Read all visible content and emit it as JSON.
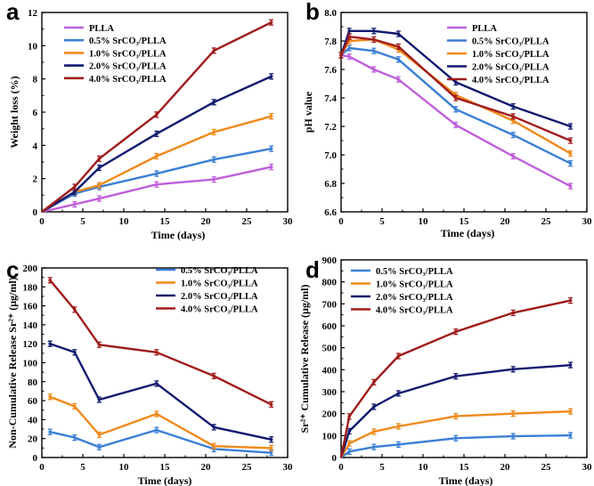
{
  "colors": {
    "plla": "#c05fdc",
    "s05": "#3b7fd6",
    "s10": "#f0891a",
    "s20": "#111a6e",
    "s40": "#a01c1c"
  },
  "chart_data": [
    {
      "panel": "a",
      "type": "line",
      "xlabel": "Time (days)",
      "ylabel": "Weight loss (%)",
      "xlim": [
        0,
        30
      ],
      "ylim": [
        0,
        12
      ],
      "xticks": [
        0,
        5,
        10,
        15,
        20,
        25,
        30
      ],
      "yticks": [
        0,
        2,
        4,
        6,
        8,
        10,
        12
      ],
      "legend_position": "top-left",
      "series": [
        {
          "name": "PLLA",
          "color_key": "plla",
          "x": [
            0,
            4,
            7,
            14,
            21,
            28
          ],
          "values": [
            0,
            0.45,
            0.8,
            1.65,
            1.95,
            2.7
          ]
        },
        {
          "name": "0.5% SrCO₃/PLLA",
          "color_key": "s05",
          "x": [
            0,
            4,
            7,
            14,
            21,
            28
          ],
          "values": [
            0,
            1.1,
            1.5,
            2.3,
            3.15,
            3.8
          ]
        },
        {
          "name": "1.0% SrCO₃/PLLA",
          "color_key": "s10",
          "x": [
            0,
            4,
            7,
            14,
            21,
            28
          ],
          "values": [
            0,
            1.2,
            1.6,
            3.35,
            4.8,
            5.75
          ]
        },
        {
          "name": "2.0% SrCO₃/PLLA",
          "color_key": "s20",
          "x": [
            0,
            4,
            7,
            14,
            21,
            28
          ],
          "values": [
            0,
            1.2,
            2.65,
            4.7,
            6.6,
            8.15
          ]
        },
        {
          "name": "4.0% SrCO₃/PLLA",
          "color_key": "s40",
          "x": [
            0,
            4,
            7,
            14,
            21,
            28
          ],
          "values": [
            0,
            1.5,
            3.2,
            5.85,
            9.7,
            11.4
          ]
        }
      ]
    },
    {
      "panel": "b",
      "type": "line",
      "xlabel": "Time (days)",
      "ylabel": "pH value",
      "xlim": [
        0,
        30
      ],
      "ylim": [
        6.6,
        8.0
      ],
      "xticks": [
        0,
        5,
        10,
        15,
        20,
        25,
        30
      ],
      "yticks": [
        6.6,
        6.8,
        7.0,
        7.2,
        7.4,
        7.6,
        7.8,
        8.0
      ],
      "legend_position": "top-right",
      "series": [
        {
          "name": "PLLA",
          "color_key": "plla",
          "x": [
            0,
            1,
            4,
            7,
            14,
            21,
            28
          ],
          "values": [
            7.7,
            7.69,
            7.6,
            7.53,
            7.21,
            6.99,
            6.78
          ]
        },
        {
          "name": "0.5% SrCO₃/PLLA",
          "color_key": "s05",
          "x": [
            0,
            1,
            4,
            7,
            14,
            21,
            28
          ],
          "values": [
            7.7,
            7.75,
            7.73,
            7.67,
            7.32,
            7.14,
            6.94
          ]
        },
        {
          "name": "1.0% SrCO₃/PLLA",
          "color_key": "s10",
          "x": [
            0,
            1,
            4,
            7,
            14,
            21,
            28
          ],
          "values": [
            7.7,
            7.8,
            7.81,
            7.74,
            7.42,
            7.24,
            7.01
          ]
        },
        {
          "name": "2.0% SrCO₃/PLLA",
          "color_key": "s20",
          "x": [
            0,
            1,
            4,
            7,
            14,
            21,
            28
          ],
          "values": [
            7.7,
            7.87,
            7.87,
            7.85,
            7.51,
            7.34,
            7.2
          ]
        },
        {
          "name": "4.0% SrCO₃/PLLA",
          "color_key": "s40",
          "x": [
            0,
            1,
            4,
            7,
            14,
            21,
            28
          ],
          "values": [
            7.7,
            7.83,
            7.81,
            7.76,
            7.4,
            7.27,
            7.1
          ]
        }
      ]
    },
    {
      "panel": "c",
      "type": "line",
      "xlabel": "Time (days)",
      "ylabel": "Non-Cumulative Release Sr²⁺ (μg/ml)",
      "xlim": [
        0,
        30
      ],
      "ylim": [
        0,
        200
      ],
      "xticks": [
        0,
        5,
        10,
        15,
        20,
        25,
        30
      ],
      "yticks": [
        0,
        20,
        40,
        60,
        80,
        100,
        120,
        140,
        160,
        180,
        200
      ],
      "legend_position": "top-right",
      "series": [
        {
          "name": "0.5% SrCO₃/PLLA",
          "color_key": "s05",
          "x": [
            1,
            4,
            7,
            14,
            21,
            28
          ],
          "values": [
            27,
            21,
            11,
            29,
            9,
            5
          ]
        },
        {
          "name": "1.0% SrCO₃/PLLA",
          "color_key": "s10",
          "x": [
            1,
            4,
            7,
            14,
            21,
            28
          ],
          "values": [
            64,
            54,
            24,
            46,
            12,
            10
          ]
        },
        {
          "name": "2.0% SrCO₃/PLLA",
          "color_key": "s20",
          "x": [
            1,
            4,
            7,
            14,
            21,
            28
          ],
          "values": [
            120,
            111,
            61,
            78,
            32,
            19
          ]
        },
        {
          "name": "4.0% SrCO₃/PLLA",
          "color_key": "s40",
          "x": [
            1,
            4,
            7,
            14,
            21,
            28
          ],
          "values": [
            187,
            156,
            119,
            111,
            86,
            56
          ]
        }
      ]
    },
    {
      "panel": "d",
      "type": "line",
      "xlabel": "Time (days)",
      "ylabel": "Sr²⁺ Cumulative Release (μg/ml)",
      "xlim": [
        0,
        30
      ],
      "ylim": [
        0,
        900
      ],
      "xticks": [
        0,
        5,
        10,
        15,
        20,
        25,
        30
      ],
      "yticks": [
        0,
        100,
        200,
        300,
        400,
        500,
        600,
        700,
        800,
        900
      ],
      "legend_position": "top-left",
      "series": [
        {
          "name": "0.5% SrCO₃/PLLA",
          "color_key": "s05",
          "x": [
            0,
            1,
            4,
            7,
            14,
            21,
            28
          ],
          "values": [
            0,
            27,
            48,
            59,
            88,
            97,
            101
          ]
        },
        {
          "name": "1.0% SrCO₃/PLLA",
          "color_key": "s10",
          "x": [
            0,
            1,
            4,
            7,
            14,
            21,
            28
          ],
          "values": [
            0,
            64,
            118,
            142,
            188,
            200,
            210
          ]
        },
        {
          "name": "2.0% SrCO₃/PLLA",
          "color_key": "s20",
          "x": [
            0,
            1,
            4,
            7,
            14,
            21,
            28
          ],
          "values": [
            0,
            120,
            231,
            292,
            370,
            402,
            421
          ]
        },
        {
          "name": "4.0% SrCO₃/PLLA",
          "color_key": "s40",
          "x": [
            0,
            1,
            4,
            7,
            14,
            21,
            28
          ],
          "values": [
            0,
            187,
            343,
            462,
            573,
            659,
            715
          ]
        }
      ]
    }
  ]
}
